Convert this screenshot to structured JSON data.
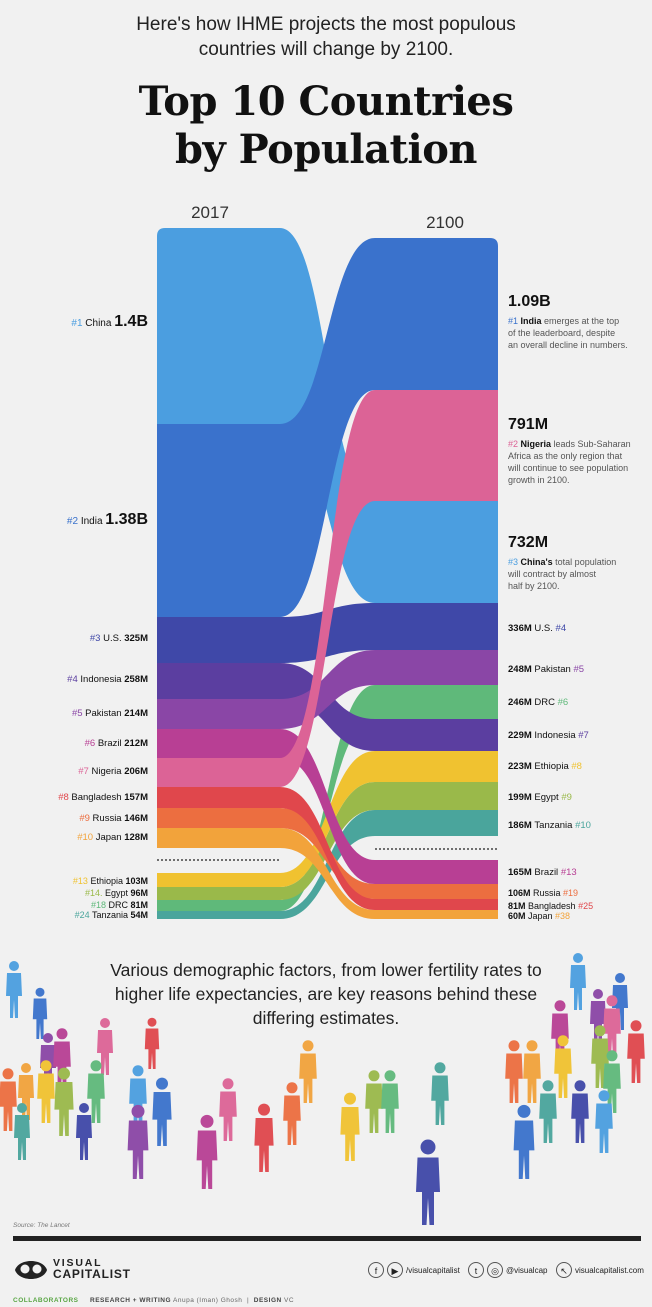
{
  "header": {
    "intro_line1": "Here's how IHME projects the most populous",
    "intro_line2": "countries will change by 2100.",
    "title_line1": "Top 10 Countries",
    "title_line2": "by Population"
  },
  "chart_data": {
    "type": "alluvial",
    "title": "Top 10 Countries by Population",
    "columns": [
      "2017",
      "2100"
    ],
    "colors": {
      "China": "#4b9ee0",
      "India": "#3a72cc",
      "U.S.": "#3f48a8",
      "Indonesia": "#5b3ea0",
      "Pakistan": "#8a46a6",
      "Brazil": "#b83f94",
      "Nigeria": "#dc6396",
      "Bangladesh": "#e0474c",
      "Russia": "#ec6e40",
      "Japan": "#f2a33b",
      "Ethiopia": "#f0c230",
      "Egypt": "#9ab94a",
      "DRC": "#5fb97a",
      "Tanzania": "#4aa59c"
    },
    "left": [
      {
        "country": "China",
        "rank": "#1",
        "label": "1.4B"
      },
      {
        "country": "India",
        "rank": "#2",
        "label": "1.38B"
      },
      {
        "country": "U.S.",
        "rank": "#3",
        "label": "325M"
      },
      {
        "country": "Indonesia",
        "rank": "#4",
        "label": "258M"
      },
      {
        "country": "Pakistan",
        "rank": "#5",
        "label": "214M"
      },
      {
        "country": "Brazil",
        "rank": "#6",
        "label": "212M"
      },
      {
        "country": "Nigeria",
        "rank": "#7",
        "label": "206M"
      },
      {
        "country": "Bangladesh",
        "rank": "#8",
        "label": "157M"
      },
      {
        "country": "Russia",
        "rank": "#9",
        "label": "146M"
      },
      {
        "country": "Japan",
        "rank": "#10",
        "label": "128M"
      },
      {
        "country": "Ethiopia",
        "rank": "#13",
        "label": "103M"
      },
      {
        "country": "Egypt",
        "rank": "#14.",
        "label": "96M"
      },
      {
        "country": "DRC",
        "rank": "#18",
        "label": "81M"
      },
      {
        "country": "Tanzania",
        "rank": "#24",
        "label": "54M"
      }
    ],
    "right": [
      {
        "country": "India",
        "rank": "#1",
        "label": "1.09B"
      },
      {
        "country": "Nigeria",
        "rank": "#2",
        "label": "791M"
      },
      {
        "country": "China",
        "rank": "#3",
        "label": "732M"
      },
      {
        "country": "U.S.",
        "rank": "#4",
        "label": "336M"
      },
      {
        "country": "Pakistan",
        "rank": "#5",
        "label": "248M"
      },
      {
        "country": "DRC",
        "rank": "#6",
        "label": "246M"
      },
      {
        "country": "Indonesia",
        "rank": "#7",
        "label": "229M"
      },
      {
        "country": "Ethiopia",
        "rank": "#8",
        "label": "223M"
      },
      {
        "country": "Egypt",
        "rank": "#9",
        "label": "199M"
      },
      {
        "country": "Tanzania",
        "rank": "#10",
        "label": "186M"
      },
      {
        "country": "Brazil",
        "rank": "#13",
        "label": "165M"
      },
      {
        "country": "Russia",
        "rank": "#19",
        "label": "106M"
      },
      {
        "country": "Bangladesh",
        "rank": "#25",
        "label": "81M"
      },
      {
        "country": "Japan",
        "rank": "#38",
        "label": "60M"
      }
    ],
    "notes": [
      {
        "country": "India",
        "rank": "#1",
        "name": "India",
        "text": [
          "emerges at the top",
          "of the leaderboard, despite",
          "an overall decline in numbers."
        ]
      },
      {
        "country": "Nigeria",
        "rank": "#2",
        "name": "Nigeria",
        "text": [
          "leads Sub-Saharan",
          "Africa as the only region that",
          "will continue to see population",
          "growth in 2100."
        ]
      },
      {
        "country": "China",
        "rank": "#3",
        "name": "China's",
        "text": [
          "total population",
          "will contract by almost",
          "half by 2100."
        ]
      }
    ]
  },
  "description": "Various demographic factors, from lower fertility rates to higher life expectancies, are key reasons behind these differing estimates.",
  "source": "Source: The Lancet",
  "footer": {
    "logo_line1": "VISUAL",
    "logo_line2": "CAPITALIST",
    "social1": "/visualcapitalist",
    "social2": "@visualcap",
    "social3": "visualcapitalist.com",
    "collab_label": "COLLABORATORS",
    "research_label": "RESEARCH + WRITING",
    "research_name": "Anupa (Iman) Ghosh",
    "design_label": "DESIGN",
    "design_name": "VC"
  }
}
